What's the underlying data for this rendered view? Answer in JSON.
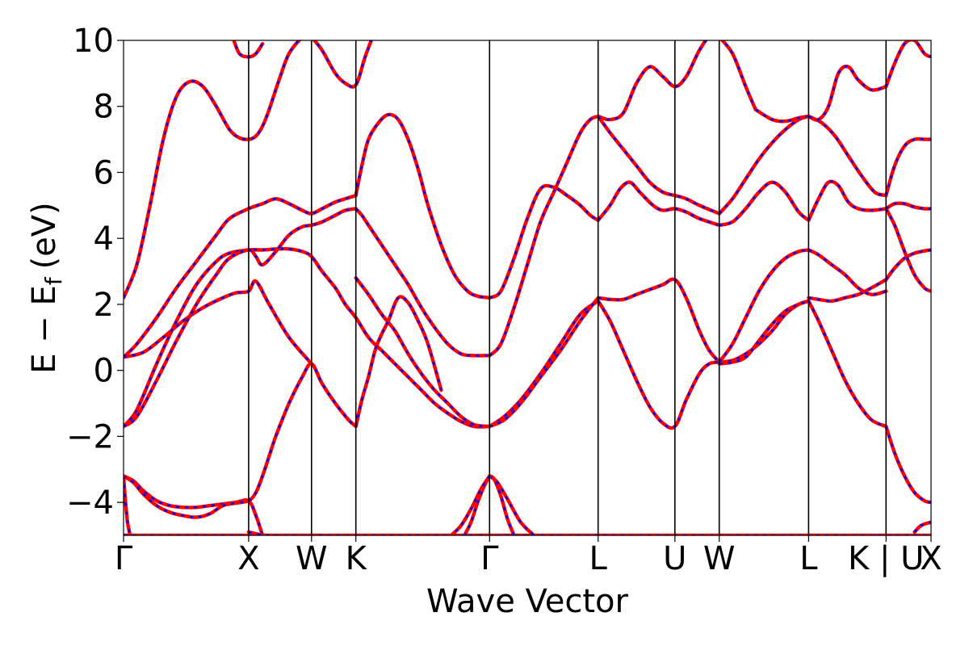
{
  "chart_data": {
    "type": "line",
    "title": "",
    "xlabel": "Wave Vector",
    "ylabel": "E − E_f (eV)",
    "ylabel_parts": {
      "main": "E − E",
      "sub": "f",
      "unit": "(eV)"
    },
    "ylim": [
      -5,
      10
    ],
    "yticks": [
      -4,
      -2,
      0,
      2,
      4,
      6,
      8,
      10
    ],
    "ytick_labels": [
      "−4",
      "−2",
      "0",
      "2",
      "4",
      "6",
      "8",
      "10"
    ],
    "xlim": [
      0,
      12.2
    ],
    "high_symmetry_points": [
      {
        "label": "Γ",
        "x": 0.0
      },
      {
        "label": "X",
        "x": 1.89
      },
      {
        "label": "W",
        "x": 2.84
      },
      {
        "label": "K",
        "x": 3.51
      },
      {
        "label": "Γ",
        "x": 5.53
      },
      {
        "label": "L",
        "x": 7.17
      },
      {
        "label": "U",
        "x": 8.33
      },
      {
        "label": "W",
        "x": 9.0
      },
      {
        "label": "L",
        "x": 10.35
      },
      {
        "label": "K | U",
        "x": 11.52
      },
      {
        "label": "X",
        "x": 12.2
      }
    ],
    "grid": false,
    "line_colors": {
      "solid": "#ff0000",
      "dashed": "#0000ff",
      "vline": "#000000"
    },
    "series": [
      {
        "x": [
          0.0,
          0.3,
          0.7,
          1.0,
          1.3,
          1.6,
          1.89,
          2.1,
          2.3,
          2.5,
          2.7,
          2.84,
          3.0,
          3.2,
          3.4,
          3.51,
          3.7,
          3.9,
          4.1,
          4.3,
          4.5,
          4.7,
          4.9,
          5.1,
          5.3,
          5.53,
          5.8,
          6.1,
          6.4,
          6.7,
          7.0,
          7.17,
          7.3,
          7.5,
          7.7,
          7.9,
          8.1,
          8.33,
          8.5,
          8.7,
          9.0,
          9.2,
          9.4,
          9.6,
          9.8,
          10.0,
          10.2,
          10.35,
          10.5,
          10.7,
          10.9,
          11.1,
          11.3,
          11.52,
          11.7,
          11.9,
          12.2
        ],
        "y": [
          -5.0,
          -5.0,
          -5.0,
          -5.0,
          -5.0,
          -5.0,
          -5.0,
          -5.0,
          -5.0,
          -5.0,
          -5.0,
          -5.0,
          -5.0,
          -5.0,
          -5.0,
          -5.0,
          -5.0,
          -5.0,
          -5.0,
          -5.0,
          -5.0,
          -5.0,
          -5.0,
          -5.0,
          -5.0,
          -5.0,
          -5.0,
          -5.0,
          -5.0,
          -5.0,
          -5.0,
          -5.0,
          -5.0,
          -5.0,
          -5.0,
          -5.0,
          -5.0,
          -5.0,
          -5.0,
          -5.0,
          -5.0,
          -5.0,
          -5.0,
          -5.0,
          -5.0,
          -5.0,
          -5.0,
          -5.0,
          -5.0,
          -5.0,
          -5.0,
          -5.0,
          -5.0,
          -5.0,
          -5.0,
          -5.0,
          -5.0
        ]
      },
      {
        "x": [
          0.0,
          0.15,
          0.3,
          0.5,
          0.7,
          0.9,
          1.1,
          1.3,
          1.5,
          1.7,
          1.89,
          2.0,
          2.1
        ],
        "y": [
          -3.2,
          -3.35,
          -3.65,
          -3.95,
          -4.1,
          -4.15,
          -4.15,
          -4.1,
          -4.05,
          -4.0,
          -3.95,
          -4.4,
          -5.0
        ]
      },
      {
        "x": [
          0.0,
          0.15,
          0.3,
          0.5,
          0.7,
          0.9,
          1.1,
          1.3,
          1.5,
          1.7,
          1.89,
          2.0,
          2.1,
          2.2,
          2.3,
          2.5,
          2.7,
          2.84,
          3.0,
          3.2,
          3.4,
          3.51
        ],
        "y": [
          -3.2,
          -3.4,
          -3.75,
          -4.1,
          -4.3,
          -4.4,
          -4.45,
          -4.35,
          -4.1,
          -4.02,
          -3.95,
          -3.7,
          -3.2,
          -2.6,
          -2.0,
          -1.0,
          -0.2,
          0.2,
          -0.4,
          -1.0,
          -1.5,
          -1.7
        ]
      },
      {
        "x": [
          0.0,
          0.03,
          0.06,
          0.1
        ],
        "y": [
          -3.2,
          -4.0,
          -4.6,
          -5.0
        ]
      },
      {
        "x": [
          1.89,
          2.0,
          2.1
        ],
        "y": [
          -4.9,
          -4.95,
          -5.0
        ]
      },
      {
        "x": [
          0.0,
          0.3,
          0.6,
          0.9,
          1.2,
          1.5,
          1.7,
          1.89,
          2.0,
          2.2,
          2.5,
          2.84
        ],
        "y": [
          0.4,
          0.55,
          1.0,
          1.5,
          1.9,
          2.2,
          2.35,
          2.4,
          2.7,
          2.0,
          1.0,
          0.2
        ]
      },
      {
        "x": [
          0.0,
          0.2,
          0.5,
          0.8,
          1.1,
          1.4,
          1.6,
          1.89,
          2.1,
          2.3,
          2.5,
          2.7,
          2.84,
          3.0,
          3.2,
          3.35,
          3.51,
          3.7,
          3.9,
          4.1,
          4.3,
          4.5,
          4.7,
          4.9,
          5.1,
          5.3,
          5.53
        ],
        "y": [
          -1.7,
          -1.2,
          0.2,
          1.5,
          2.6,
          3.3,
          3.55,
          3.65,
          3.65,
          3.68,
          3.68,
          3.6,
          3.45,
          3.0,
          2.5,
          2.0,
          1.6,
          1.0,
          0.6,
          0.2,
          -0.2,
          -0.6,
          -1.0,
          -1.3,
          -1.55,
          -1.7,
          -1.7
        ]
      },
      {
        "x": [
          0.0,
          0.2,
          0.5,
          0.8,
          1.1,
          1.4,
          1.6,
          1.89,
          2.0,
          2.1,
          2.3,
          2.5,
          2.7,
          2.84,
          3.0,
          3.2,
          3.35,
          3.51
        ],
        "y": [
          -1.7,
          -1.4,
          -0.3,
          0.9,
          2.0,
          2.9,
          3.4,
          3.65,
          3.45,
          3.2,
          3.6,
          4.1,
          4.35,
          4.4,
          4.5,
          4.7,
          4.85,
          4.9
        ]
      },
      {
        "x": [
          0.0,
          0.2,
          0.5,
          0.8,
          1.1,
          1.4,
          1.6,
          1.89,
          2.1,
          2.3,
          2.5,
          2.7,
          2.84,
          3.0,
          3.2,
          3.35,
          3.51
        ],
        "y": [
          0.4,
          0.8,
          1.6,
          2.5,
          3.3,
          4.1,
          4.6,
          4.9,
          5.05,
          5.2,
          5.05,
          4.85,
          4.75,
          4.9,
          5.1,
          5.2,
          5.3
        ]
      },
      {
        "x": [
          0.0,
          0.2,
          0.4,
          0.6,
          0.8,
          1.0,
          1.2,
          1.4,
          1.6,
          1.75,
          1.89,
          2.0,
          2.1,
          2.2,
          2.35,
          2.5,
          2.7,
          2.84
        ],
        "y": [
          2.2,
          3.2,
          5.0,
          7.0,
          8.3,
          8.75,
          8.6,
          8.0,
          7.3,
          7.05,
          7.0,
          7.1,
          7.4,
          7.9,
          8.8,
          9.6,
          10.1,
          10.3
        ]
      },
      {
        "x": [
          1.65,
          1.75,
          1.89,
          2.0,
          2.1
        ],
        "y": [
          10.1,
          9.6,
          9.5,
          9.6,
          9.9
        ]
      },
      {
        "x": [
          2.84,
          3.0,
          3.2,
          3.35,
          3.51,
          3.65,
          3.8
        ],
        "y": [
          10.1,
          9.7,
          9.0,
          8.7,
          8.65,
          9.5,
          10.3
        ]
      },
      {
        "x": [
          3.51,
          3.7,
          3.9,
          4.1,
          4.3,
          4.5,
          4.7,
          4.9,
          5.1,
          5.3,
          5.53
        ],
        "y": [
          2.8,
          2.3,
          1.7,
          1.2,
          0.5,
          -0.1,
          -0.6,
          -1.0,
          -1.4,
          -1.65,
          -1.7
        ]
      },
      {
        "x": [
          3.51,
          3.6,
          3.7,
          3.8,
          3.9,
          4.1,
          4.3,
          4.5,
          4.7,
          4.9,
          5.1,
          5.3,
          5.53
        ],
        "y": [
          4.9,
          4.7,
          4.4,
          4.1,
          3.8,
          3.2,
          2.6,
          1.9,
          1.3,
          0.8,
          0.5,
          0.45,
          0.45
        ]
      },
      {
        "x": [
          3.51,
          3.6,
          3.7,
          3.85,
          4.0,
          4.15,
          4.3,
          4.45,
          4.6,
          4.8,
          5.0,
          5.2,
          5.35,
          5.53
        ],
        "y": [
          5.3,
          6.2,
          7.0,
          7.5,
          7.75,
          7.6,
          7.0,
          6.1,
          5.0,
          3.8,
          2.9,
          2.4,
          2.25,
          2.2
        ]
      },
      {
        "x": [
          3.51,
          3.6,
          3.7,
          3.8,
          3.9,
          4.0,
          4.15,
          4.3,
          4.45,
          4.6,
          4.8
        ],
        "y": [
          -1.7,
          -0.9,
          -0.2,
          0.6,
          1.1,
          1.5,
          2.2,
          2.05,
          1.5,
          0.8,
          -0.6
        ]
      },
      {
        "x": [
          5.53,
          5.7,
          5.9,
          6.1,
          6.3,
          6.5,
          6.7,
          6.9,
          7.05,
          7.17
        ],
        "y": [
          0.45,
          0.8,
          1.9,
          3.2,
          4.5,
          5.4,
          6.3,
          7.2,
          7.6,
          7.7
        ]
      },
      {
        "x": [
          5.53,
          5.7,
          5.9,
          6.1,
          6.3,
          6.5,
          6.7,
          6.9,
          7.05,
          7.17
        ],
        "y": [
          2.2,
          2.4,
          3.4,
          4.6,
          5.5,
          5.55,
          5.3,
          5.0,
          4.7,
          4.55
        ]
      },
      {
        "x": [
          5.53,
          5.75,
          6.0,
          6.3,
          6.6,
          6.9,
          7.17
        ],
        "y": [
          -1.7,
          -1.4,
          -0.9,
          -0.1,
          0.8,
          1.7,
          2.1
        ]
      },
      {
        "x": [
          5.53,
          5.75,
          6.0,
          6.3,
          6.6,
          6.9,
          7.17
        ],
        "y": [
          -1.7,
          -1.5,
          -1.0,
          -0.2,
          0.6,
          1.5,
          2.2
        ]
      },
      {
        "x": [
          5.53,
          5.6,
          5.7,
          5.8,
          5.9
        ],
        "y": [
          -3.2,
          -3.3,
          -3.8,
          -4.5,
          -5.0
        ]
      },
      {
        "x": [
          5.53,
          5.65,
          5.8,
          6.0,
          6.2
        ],
        "y": [
          -3.2,
          -3.4,
          -3.9,
          -4.6,
          -5.0
        ]
      },
      {
        "x": [
          5.53,
          5.45,
          5.35,
          5.25,
          5.15
        ],
        "y": [
          -3.2,
          -3.5,
          -4.0,
          -4.6,
          -5.0
        ]
      },
      {
        "x": [
          5.53,
          5.4,
          5.25,
          5.1,
          4.95
        ],
        "y": [
          -3.2,
          -3.6,
          -4.2,
          -4.7,
          -5.0
        ]
      },
      {
        "x": [
          7.17,
          7.35,
          7.55,
          7.75,
          7.95,
          8.15,
          8.33,
          8.5,
          8.7,
          8.85,
          9.0
        ],
        "y": [
          7.7,
          7.6,
          7.8,
          8.7,
          9.2,
          8.9,
          8.6,
          8.9,
          9.7,
          10.1,
          10.1
        ]
      },
      {
        "x": [
          7.17,
          7.35,
          7.55,
          7.75,
          7.95,
          8.15,
          8.33,
          8.5,
          8.7,
          9.0
        ],
        "y": [
          7.7,
          7.2,
          6.7,
          6.2,
          5.7,
          5.4,
          5.3,
          5.2,
          5.0,
          4.75
        ]
      },
      {
        "x": [
          7.17,
          7.35,
          7.5,
          7.65,
          7.8,
          8.0,
          8.15,
          8.33,
          8.5,
          8.7,
          9.0
        ],
        "y": [
          4.55,
          5.0,
          5.5,
          5.7,
          5.4,
          5.0,
          4.85,
          4.9,
          4.8,
          4.6,
          4.4
        ]
      },
      {
        "x": [
          7.17,
          7.35,
          7.55,
          7.75,
          7.95,
          8.15,
          8.33,
          8.5,
          8.7,
          8.85,
          9.0
        ],
        "y": [
          2.2,
          2.15,
          2.15,
          2.3,
          2.45,
          2.6,
          2.75,
          2.2,
          1.2,
          0.6,
          0.25
        ]
      },
      {
        "x": [
          7.17,
          7.35,
          7.55,
          7.75,
          7.95,
          8.15,
          8.33,
          8.5,
          8.7,
          8.85,
          9.0
        ],
        "y": [
          2.1,
          1.5,
          0.6,
          -0.3,
          -1.1,
          -1.6,
          -1.7,
          -0.9,
          -0.1,
          0.2,
          0.25
        ]
      },
      {
        "x": [
          9.0,
          9.2,
          9.4,
          9.6,
          9.8,
          10.0,
          10.2,
          10.35
        ],
        "y": [
          0.25,
          0.3,
          0.5,
          0.8,
          1.2,
          1.7,
          2.0,
          2.1
        ]
      },
      {
        "x": [
          9.0,
          9.2,
          9.4,
          9.6,
          9.8,
          10.0,
          10.2,
          10.35
        ],
        "y": [
          0.2,
          0.25,
          0.4,
          0.9,
          1.4,
          1.8,
          2.0,
          2.1
        ]
      },
      {
        "x": [
          9.0,
          9.2,
          9.4,
          9.6,
          9.8,
          10.0,
          10.2,
          10.35
        ],
        "y": [
          4.4,
          4.5,
          4.9,
          5.4,
          5.7,
          5.4,
          4.8,
          4.55
        ]
      },
      {
        "x": [
          9.0,
          9.2,
          9.4,
          9.6,
          9.8,
          10.0,
          10.2,
          10.35
        ],
        "y": [
          4.75,
          5.2,
          5.8,
          6.4,
          6.9,
          7.3,
          7.6,
          7.7
        ]
      },
      {
        "x": [
          9.0,
          9.2,
          9.4,
          9.6,
          9.8,
          10.0,
          10.2,
          10.35
        ],
        "y": [
          0.25,
          0.8,
          1.6,
          2.4,
          3.0,
          3.4,
          3.6,
          3.65
        ]
      },
      {
        "x": [
          9.0,
          9.2,
          9.4,
          9.55
        ],
        "y": [
          10.1,
          9.6,
          8.6,
          7.9
        ]
      },
      {
        "x": [
          9.55,
          9.8,
          10.0,
          10.2,
          10.35
        ],
        "y": [
          7.9,
          7.6,
          7.55,
          7.65,
          7.7
        ]
      },
      {
        "x": [
          10.35,
          10.5,
          10.7,
          10.9,
          11.1,
          11.3,
          11.52
        ],
        "y": [
          2.1,
          1.5,
          0.6,
          -0.3,
          -1.0,
          -1.5,
          -1.7
        ]
      },
      {
        "x": [
          10.35,
          10.5,
          10.7,
          10.9,
          11.1,
          11.3,
          11.52
        ],
        "y": [
          2.2,
          2.15,
          2.1,
          2.2,
          2.3,
          2.5,
          2.75
        ]
      },
      {
        "x": [
          10.35,
          10.5,
          10.7,
          10.9,
          11.1,
          11.3,
          11.52
        ],
        "y": [
          3.65,
          3.5,
          3.2,
          2.9,
          2.5,
          2.3,
          2.4
        ]
      },
      {
        "x": [
          10.35,
          10.5,
          10.65,
          10.8,
          10.95,
          11.1,
          11.3,
          11.52
        ],
        "y": [
          4.55,
          5.2,
          5.7,
          5.6,
          5.1,
          4.9,
          4.85,
          4.9
        ]
      },
      {
        "x": [
          10.35,
          10.55,
          10.75,
          10.95,
          11.15,
          11.35,
          11.52
        ],
        "y": [
          7.7,
          7.5,
          7.1,
          6.5,
          5.9,
          5.4,
          5.3
        ]
      },
      {
        "x": [
          10.35,
          10.5,
          10.65,
          10.8,
          10.95,
          11.1,
          11.3,
          11.52
        ],
        "y": [
          7.7,
          7.6,
          8.0,
          9.0,
          9.2,
          8.8,
          8.5,
          8.6
        ]
      },
      {
        "x": [
          11.52,
          11.65,
          11.8,
          11.95,
          12.1,
          12.2
        ],
        "y": [
          -1.7,
          -2.5,
          -3.2,
          -3.7,
          -3.95,
          -4.0
        ]
      },
      {
        "x": [
          11.52,
          11.65,
          11.8,
          11.95,
          12.1,
          12.2
        ],
        "y": [
          2.75,
          3.1,
          3.4,
          3.55,
          3.62,
          3.65
        ]
      },
      {
        "x": [
          11.52,
          11.65,
          11.8,
          11.95,
          12.1,
          12.2
        ],
        "y": [
          4.9,
          4.4,
          3.6,
          2.9,
          2.5,
          2.4
        ]
      },
      {
        "x": [
          11.52,
          11.65,
          11.8,
          11.95,
          12.1,
          12.2
        ],
        "y": [
          4.9,
          5.05,
          5.05,
          4.95,
          4.9,
          4.9
        ]
      },
      {
        "x": [
          11.52,
          11.65,
          11.8,
          11.95,
          12.1,
          12.2
        ],
        "y": [
          5.3,
          6.2,
          6.8,
          7.0,
          7.0,
          7.0
        ]
      },
      {
        "x": [
          11.52,
          11.65,
          11.8,
          11.95,
          12.1,
          12.2
        ],
        "y": [
          8.6,
          9.3,
          9.9,
          10.0,
          9.6,
          9.5
        ]
      },
      {
        "x": [
          11.95,
          12.05,
          12.2
        ],
        "y": [
          -4.9,
          -4.7,
          -4.6
        ]
      }
    ]
  }
}
